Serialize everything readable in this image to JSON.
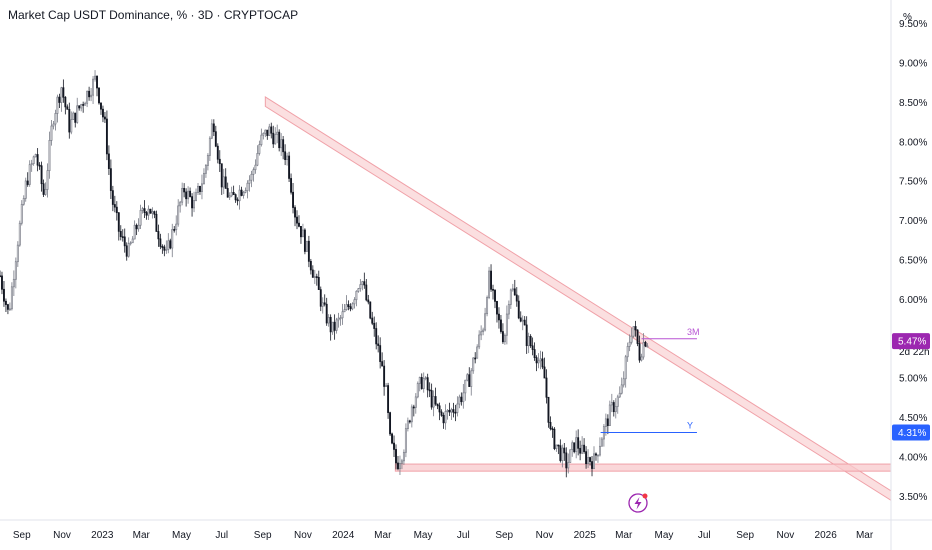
{
  "header": {
    "title": "Market Cap USDT Dominance, % · 3D · CRYPTOCAP"
  },
  "price_axis": {
    "unit": "%"
  },
  "chart_data": {
    "type": "candlestick",
    "title": "Market Cap USDT Dominance, % · 3D · CRYPTOCAP",
    "x_range": [
      "2022-07-30",
      "2026-04-10"
    ],
    "y_range": [
      3.2,
      9.8
    ],
    "y_ticks": [
      "3.50%",
      "4.00%",
      "4.50%",
      "5.00%",
      "5.50%",
      "6.00%",
      "6.50%",
      "7.00%",
      "7.50%",
      "8.00%",
      "8.50%",
      "9.00%",
      "9.50%"
    ],
    "x_ticks": [
      {
        "label": "Sep",
        "date": "2022-09-01"
      },
      {
        "label": "Nov",
        "date": "2022-11-01"
      },
      {
        "label": "2023",
        "date": "2023-01-01"
      },
      {
        "label": "Mar",
        "date": "2023-03-01"
      },
      {
        "label": "May",
        "date": "2023-05-01"
      },
      {
        "label": "Jul",
        "date": "2023-07-01"
      },
      {
        "label": "Sep",
        "date": "2023-09-01"
      },
      {
        "label": "Nov",
        "date": "2023-11-01"
      },
      {
        "label": "2024",
        "date": "2024-01-01"
      },
      {
        "label": "Mar",
        "date": "2024-03-01"
      },
      {
        "label": "May",
        "date": "2024-05-01"
      },
      {
        "label": "Jul",
        "date": "2024-07-01"
      },
      {
        "label": "Sep",
        "date": "2024-09-01"
      },
      {
        "label": "Nov",
        "date": "2024-11-01"
      },
      {
        "label": "2025",
        "date": "2025-01-01"
      },
      {
        "label": "Mar",
        "date": "2025-03-01"
      },
      {
        "label": "May",
        "date": "2025-05-01"
      },
      {
        "label": "Jul",
        "date": "2025-07-01"
      },
      {
        "label": "Sep",
        "date": "2025-09-01"
      },
      {
        "label": "Nov",
        "date": "2025-11-01"
      },
      {
        "label": "2026",
        "date": "2026-01-01"
      },
      {
        "label": "Mar",
        "date": "2026-03-01"
      }
    ],
    "price_path": [
      [
        "2022-07-30",
        6.3
      ],
      [
        "2022-08-12",
        5.8
      ],
      [
        "2022-08-25",
        6.7
      ],
      [
        "2022-09-08",
        7.5
      ],
      [
        "2022-09-22",
        7.85
      ],
      [
        "2022-10-05",
        7.3
      ],
      [
        "2022-10-18",
        8.3
      ],
      [
        "2022-10-31",
        8.7
      ],
      [
        "2022-11-12",
        8.2
      ],
      [
        "2022-11-25",
        8.4
      ],
      [
        "2022-12-08",
        8.6
      ],
      [
        "2022-12-22",
        8.8
      ],
      [
        "2023-01-05",
        8.2
      ],
      [
        "2023-01-15",
        7.3
      ],
      [
        "2023-01-28",
        6.8
      ],
      [
        "2023-02-10",
        6.6
      ],
      [
        "2023-02-25",
        7.0
      ],
      [
        "2023-03-12",
        7.2
      ],
      [
        "2023-03-25",
        6.9
      ],
      [
        "2023-04-08",
        6.55
      ],
      [
        "2023-04-22",
        7.0
      ],
      [
        "2023-05-05",
        7.4
      ],
      [
        "2023-05-20",
        7.2
      ],
      [
        "2023-06-05",
        7.6
      ],
      [
        "2023-06-18",
        8.3
      ],
      [
        "2023-07-01",
        7.5
      ],
      [
        "2023-07-15",
        7.25
      ],
      [
        "2023-07-30",
        7.4
      ],
      [
        "2023-08-15",
        7.55
      ],
      [
        "2023-08-28",
        8.0
      ],
      [
        "2023-09-10",
        8.15
      ],
      [
        "2023-09-25",
        8.0
      ],
      [
        "2023-10-08",
        7.8
      ],
      [
        "2023-10-20",
        7.1
      ],
      [
        "2023-11-01",
        6.8
      ],
      [
        "2023-11-15",
        6.4
      ],
      [
        "2023-12-01",
        5.9
      ],
      [
        "2023-12-15",
        5.6
      ],
      [
        "2024-01-01",
        5.8
      ],
      [
        "2024-01-15",
        6.0
      ],
      [
        "2024-01-28",
        6.3
      ],
      [
        "2024-02-10",
        5.8
      ],
      [
        "2024-02-22",
        5.4
      ],
      [
        "2024-03-05",
        4.9
      ],
      [
        "2024-03-12",
        4.2
      ],
      [
        "2024-03-22",
        3.9
      ],
      [
        "2024-04-01",
        4.1
      ],
      [
        "2024-04-15",
        4.7
      ],
      [
        "2024-05-01",
        5.0
      ],
      [
        "2024-05-15",
        4.7
      ],
      [
        "2024-05-30",
        4.5
      ],
      [
        "2024-06-15",
        4.6
      ],
      [
        "2024-06-30",
        4.8
      ],
      [
        "2024-07-10",
        5.0
      ],
      [
        "2024-07-22",
        5.4
      ],
      [
        "2024-08-01",
        5.7
      ],
      [
        "2024-08-08",
        6.3
      ],
      [
        "2024-08-20",
        5.8
      ],
      [
        "2024-09-01",
        5.5
      ],
      [
        "2024-09-10",
        6.2
      ],
      [
        "2024-09-22",
        5.9
      ],
      [
        "2024-10-05",
        5.5
      ],
      [
        "2024-10-20",
        5.3
      ],
      [
        "2024-11-01",
        5.0
      ],
      [
        "2024-11-10",
        4.3
      ],
      [
        "2024-11-22",
        4.1
      ],
      [
        "2024-12-05",
        3.9
      ],
      [
        "2024-12-18",
        4.2
      ],
      [
        "2025-01-01",
        4.0
      ],
      [
        "2025-01-15",
        3.95
      ],
      [
        "2025-01-28",
        4.3
      ],
      [
        "2025-02-10",
        4.6
      ],
      [
        "2025-02-25",
        4.8
      ],
      [
        "2025-03-08",
        5.4
      ],
      [
        "2025-03-15",
        5.7
      ],
      [
        "2025-03-25",
        5.3
      ],
      [
        "2025-04-02",
        5.5
      ],
      [
        "2025-04-07",
        5.47
      ]
    ],
    "resistance_channel": {
      "start": [
        "2023-09-05",
        8.45
      ],
      "end": [
        "2026-04-10",
        3.45
      ],
      "width": 0.12
    },
    "support_zone": {
      "start": "2024-03-20",
      "end": "2026-04-10",
      "low": 3.82,
      "high": 3.91
    },
    "levels": [
      {
        "label": "3M",
        "value": 5.5,
        "start": "2025-03-28",
        "end": "2025-06-20",
        "color": "#b854d4"
      },
      {
        "label": "Y",
        "value": 4.31,
        "start": "2025-01-25",
        "end": "2025-06-20",
        "color": "#2962ff"
      }
    ],
    "last_price": {
      "value": "5.50%",
      "countdown": "2d 22h"
    },
    "badges": [
      {
        "text": "5.47%",
        "value": 5.47,
        "color": "#9c27b0"
      },
      {
        "text": "4.31%",
        "value": 4.31,
        "color": "#2962ff"
      }
    ],
    "colors": {
      "up": "#089981",
      "down": "#131722",
      "channel_fill": "#f8c9cc",
      "channel_stroke": "#f0a1a8",
      "grid": "#f0f3fa"
    }
  }
}
